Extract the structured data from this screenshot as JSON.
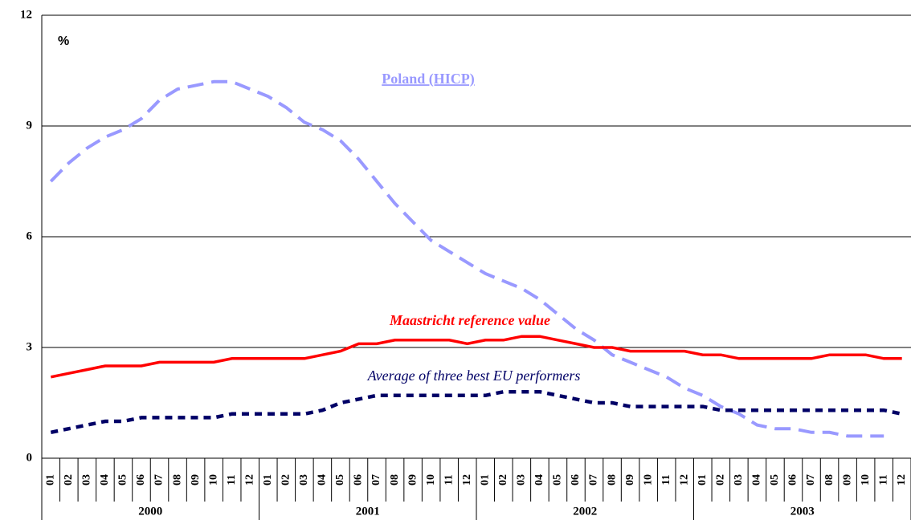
{
  "chart_data": {
    "type": "line",
    "y_label": "%",
    "categories": [
      "01",
      "02",
      "03",
      "04",
      "05",
      "06",
      "07",
      "08",
      "09",
      "10",
      "11",
      "12",
      "01",
      "02",
      "03",
      "04",
      "05",
      "06",
      "07",
      "08",
      "09",
      "10",
      "11",
      "12",
      "01",
      "02",
      "03",
      "04",
      "05",
      "06",
      "07",
      "08",
      "09",
      "10",
      "11",
      "12",
      "01",
      "02",
      "03",
      "04",
      "05",
      "06",
      "07",
      "08",
      "09",
      "10",
      "11",
      "12"
    ],
    "groups": [
      "2000",
      "2001",
      "2002",
      "2003"
    ],
    "ylim": [
      0,
      12
    ],
    "yticks": [
      0,
      3,
      6,
      9,
      12
    ],
    "grid": true,
    "series": [
      {
        "name": "Poland (HICP)",
        "color": "#9999ff",
        "style": "dashed",
        "values": [
          7.5,
          8.0,
          8.4,
          8.7,
          8.9,
          9.2,
          9.7,
          10.0,
          10.1,
          10.2,
          10.2,
          10.0,
          9.8,
          9.5,
          9.1,
          8.9,
          8.6,
          8.1,
          7.5,
          6.9,
          6.4,
          5.9,
          5.6,
          5.3,
          5.0,
          4.8,
          4.6,
          4.3,
          3.9,
          3.5,
          3.2,
          2.8,
          2.6,
          2.4,
          2.2,
          1.9,
          1.7,
          1.4,
          1.2,
          0.9,
          0.8,
          0.8,
          0.7,
          0.7,
          0.6,
          0.6,
          0.6,
          null
        ]
      },
      {
        "name": "Maastricht reference value",
        "color": "#ff0000",
        "style": "solid",
        "values": [
          2.2,
          2.3,
          2.4,
          2.5,
          2.5,
          2.5,
          2.6,
          2.6,
          2.6,
          2.6,
          2.7,
          2.7,
          2.7,
          2.7,
          2.7,
          2.8,
          2.9,
          3.1,
          3.1,
          3.2,
          3.2,
          3.2,
          3.2,
          3.1,
          3.2,
          3.2,
          3.3,
          3.3,
          3.2,
          3.1,
          3.0,
          3.0,
          2.9,
          2.9,
          2.9,
          2.9,
          2.8,
          2.8,
          2.7,
          2.7,
          2.7,
          2.7,
          2.7,
          2.8,
          2.8,
          2.8,
          2.7,
          2.7
        ]
      },
      {
        "name": "Average of three best EU performers",
        "color": "#000066",
        "style": "dotted",
        "values": [
          0.7,
          0.8,
          0.9,
          1.0,
          1.0,
          1.1,
          1.1,
          1.1,
          1.1,
          1.1,
          1.2,
          1.2,
          1.2,
          1.2,
          1.2,
          1.3,
          1.5,
          1.6,
          1.7,
          1.7,
          1.7,
          1.7,
          1.7,
          1.7,
          1.7,
          1.8,
          1.8,
          1.8,
          1.7,
          1.6,
          1.5,
          1.5,
          1.4,
          1.4,
          1.4,
          1.4,
          1.4,
          1.3,
          1.3,
          1.3,
          1.3,
          1.3,
          1.3,
          1.3,
          1.3,
          1.3,
          1.3,
          1.2
        ]
      }
    ]
  }
}
